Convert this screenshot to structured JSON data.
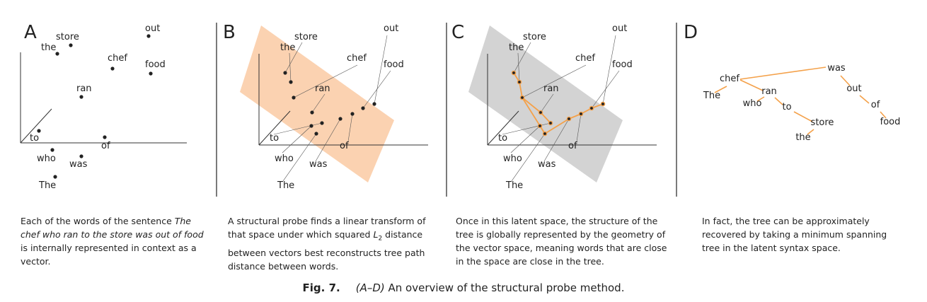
{
  "panels": {
    "a": {
      "letter": "A"
    },
    "b": {
      "letter": "B"
    },
    "c": {
      "letter": "C"
    },
    "d": {
      "letter": "D"
    }
  },
  "words": [
    "The",
    "chef",
    "who",
    "ran",
    "to",
    "the",
    "store",
    "was",
    "out",
    "of",
    "food"
  ],
  "captions": {
    "a_pre": "Each of the words of the sentence ",
    "a_em": "The chef who ran to the store was out of food",
    "a_post": " is internally represented in context as a vector.",
    "b_pre": "A structural probe finds a linear transform of that space under which squared ",
    "b_l": "L",
    "b_sub": "2",
    "b_post": " distance between vectors best reconstructs tree path distance between words.",
    "c": "Once in this latent space, the structure of the tree is globally represented by the geometry of the vector space, meaning words that are close in the space are close in the tree.",
    "d": "In fact, the tree can be approximately recovered by taking a minimum spanning tree in the latent syntax space."
  },
  "figure_caption": {
    "label": "Fig. 7.",
    "range": "(A–D)",
    "text": " An overview of the structural probe method."
  },
  "colors": {
    "orange_plane": "#fbd2b1",
    "gray_plane": "#d3d3d3",
    "tree_edge": "#f4a14a",
    "text": "#222222"
  }
}
